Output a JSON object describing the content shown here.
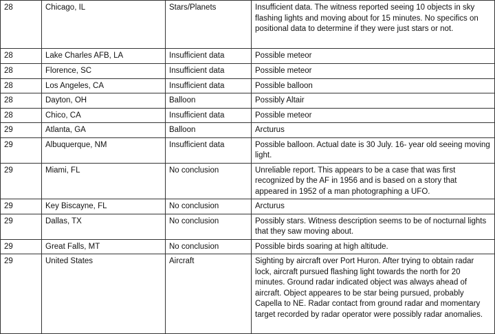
{
  "table": {
    "rows": [
      [
        "28",
        "Chicago, IL",
        "Stars/Planets",
        "Insufficient data.  The witness reported seeing 10 objects in sky flashing lights and moving about for 15 minutes.  No specifics on positional data to determine if they were just stars or not."
      ],
      [
        "28",
        "Lake Charles AFB, LA",
        "Insufficient data",
        "Possible meteor"
      ],
      [
        "28",
        "Florence, SC",
        "Insufficient data",
        "Possible meteor"
      ],
      [
        "28",
        "Los Angeles, CA",
        "Insufficient data",
        "Possible balloon"
      ],
      [
        "28",
        "Dayton, OH",
        "Balloon",
        "Possibly Altair"
      ],
      [
        "28",
        "Chico, CA",
        "Insufficient data",
        "Possible meteor"
      ],
      [
        "29",
        "Atlanta, GA",
        "Balloon",
        "Arcturus"
      ],
      [
        "29",
        "Albuquerque, NM",
        "Insufficient data",
        "Possible balloon.  Actual date is 30 July.  16- year old seeing moving light."
      ],
      [
        "29",
        "Miami, FL",
        "No conclusion",
        "Unreliable report. This appears to be a case that was first recognized by the AF in 1956 and is based on a story that appeared in 1952 of a man photographing a UFO."
      ],
      [
        "29",
        "Key Biscayne, FL",
        "No conclusion",
        "Arcturus"
      ],
      [
        "29",
        "Dallas, TX",
        "No conclusion",
        "Possibly stars. Witness description seems to be of nocturnal lights that they saw moving about."
      ],
      [
        "29",
        "Great Falls, MT",
        "No conclusion",
        "Possible birds soaring at high altitude."
      ],
      [
        "29",
        "United States",
        "Aircraft",
        "Sighting by aircraft over Port Huron. After trying to obtain radar lock, aircraft pursued flashing light towards the north for 20 minutes.  Ground radar indicated object was always ahead of aircraft.  Object appeares to be star being pursued, probably Capella to NE.  Radar contact from ground radar and momentary target recorded by radar operator were possibly radar anomalies."
      ]
    ]
  }
}
